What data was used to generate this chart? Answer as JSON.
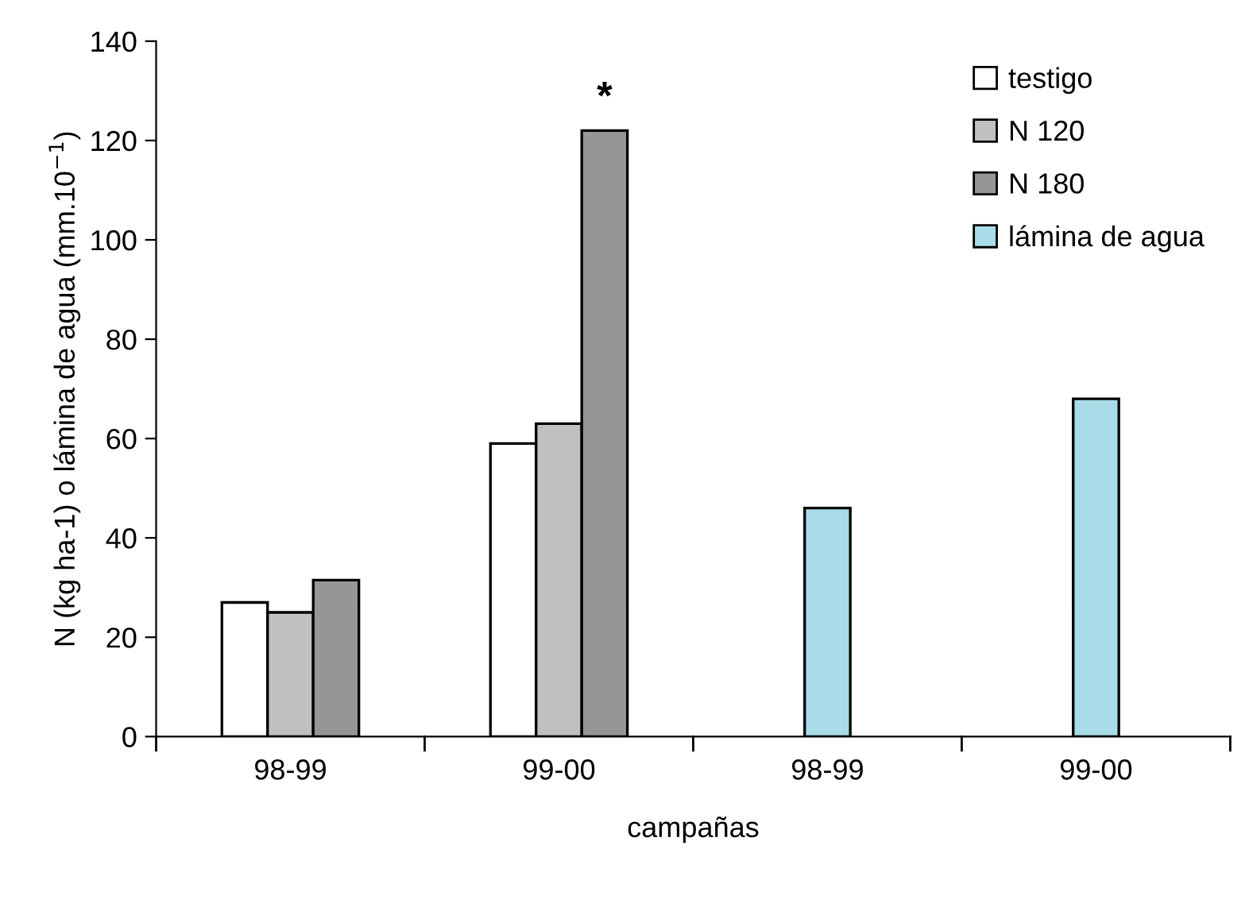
{
  "chart_data": {
    "type": "bar",
    "xlabel": "campañas",
    "ylabel": "N (kg ha-1) o lámina de agua (mm.10$^{−1}$)",
    "categories": [
      "98-99",
      "99-00",
      "98-99",
      "99-00"
    ],
    "series": [
      {
        "name": "testigo",
        "color": "#ffffff",
        "values": [
          27,
          59,
          null,
          null
        ]
      },
      {
        "name": "N 120",
        "color": "#c0c0c0",
        "values": [
          25,
          63,
          null,
          null
        ]
      },
      {
        "name": "N 180",
        "color": "#969696",
        "values": [
          31.5,
          122,
          null,
          null
        ]
      },
      {
        "name": "lámina de agua",
        "color": "#a8dce8",
        "values": [
          null,
          null,
          46,
          68
        ]
      }
    ],
    "annotations": [
      "*"
    ],
    "ylim": [
      0,
      140
    ],
    "yticks": [
      0,
      20,
      40,
      60,
      80,
      100,
      120,
      140
    ],
    "grid": false,
    "legend": "top right"
  }
}
